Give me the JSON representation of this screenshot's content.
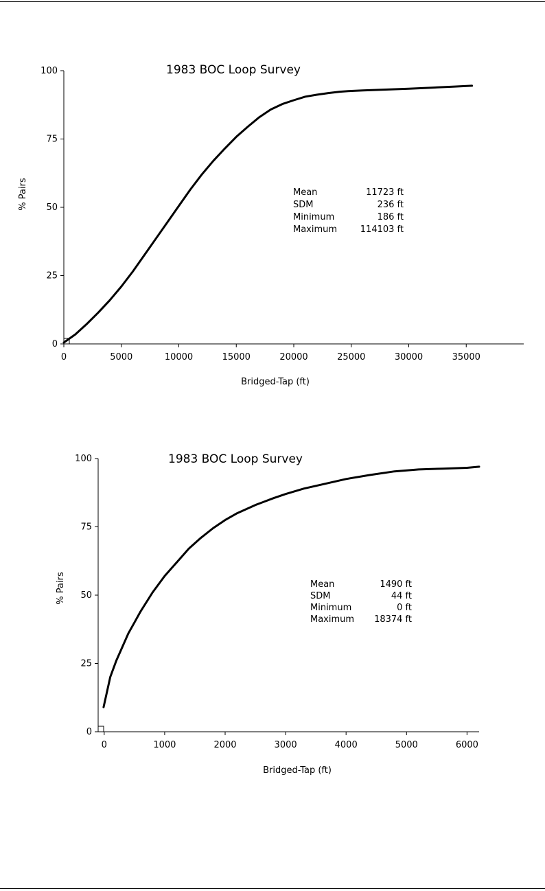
{
  "chart_data": [
    {
      "type": "line",
      "title": "1983 BOC Loop Survey",
      "xlabel": "Bridged-Tap (ft)",
      "ylabel": "% Pairs",
      "xlim": [
        0,
        40000
      ],
      "ylim": [
        0,
        100
      ],
      "x_ticks": [
        0,
        5000,
        10000,
        15000,
        20000,
        25000,
        30000,
        35000
      ],
      "y_ticks": [
        0,
        25,
        50,
        75,
        100
      ],
      "grid": false,
      "series": [
        {
          "x": [
            0,
            1000,
            2000,
            3000,
            4000,
            5000,
            6000,
            7000,
            8000,
            9000,
            10000,
            11000,
            12000,
            13000,
            14000,
            15000,
            16000,
            17000,
            18000,
            19000,
            20000,
            21000,
            22000,
            23000,
            24000,
            25000,
            26000,
            28000,
            30000,
            32000,
            34000,
            35500
          ],
          "y": [
            0.5,
            3.5,
            7.3,
            11.5,
            16.0,
            21.0,
            26.5,
            32.5,
            38.5,
            44.5,
            50.5,
            56.5,
            62.0,
            67.0,
            71.5,
            75.8,
            79.5,
            83.0,
            85.8,
            87.8,
            89.2,
            90.5,
            91.2,
            91.8,
            92.3,
            92.6,
            92.8,
            93.1,
            93.4,
            93.8,
            94.2,
            94.5
          ]
        }
      ],
      "stats": [
        {
          "label": "Mean",
          "value": "11723 ft"
        },
        {
          "label": "SDM",
          "value": "236 ft"
        },
        {
          "label": "Minimum",
          "value": "186 ft"
        },
        {
          "label": "Maximum",
          "value": "114103 ft"
        }
      ]
    },
    {
      "type": "line",
      "title": "1983 BOC Loop Survey",
      "xlabel": "Bridged-Tap (ft)",
      "ylabel": "% Pairs",
      "xlim": [
        -100,
        6200
      ],
      "ylim": [
        0,
        100
      ],
      "x_ticks": [
        0,
        1000,
        2000,
        3000,
        4000,
        5000,
        6000
      ],
      "y_ticks": [
        0,
        25,
        50,
        75,
        100
      ],
      "grid": false,
      "series": [
        {
          "x": [
            -10,
            50,
            100,
            200,
            300,
            400,
            500,
            600,
            800,
            1000,
            1200,
            1400,
            1600,
            1800,
            2000,
            2200,
            2500,
            2800,
            3000,
            3300,
            3600,
            4000,
            4400,
            4800,
            5200,
            5600,
            6000,
            6200
          ],
          "y": [
            9,
            15,
            20,
            26,
            31,
            36,
            40,
            44,
            51,
            57,
            62,
            67,
            71,
            74.5,
            77.5,
            80,
            83,
            85.5,
            87,
            89,
            90.5,
            92.5,
            94,
            95.3,
            96,
            96.3,
            96.6,
            97
          ]
        }
      ],
      "stats": [
        {
          "label": "Mean",
          "value": "1490 ft"
        },
        {
          "label": "SDM",
          "value": "44 ft"
        },
        {
          "label": "Minimum",
          "value": "0 ft"
        },
        {
          "label": "Maximum",
          "value": "18374 ft"
        }
      ]
    }
  ]
}
